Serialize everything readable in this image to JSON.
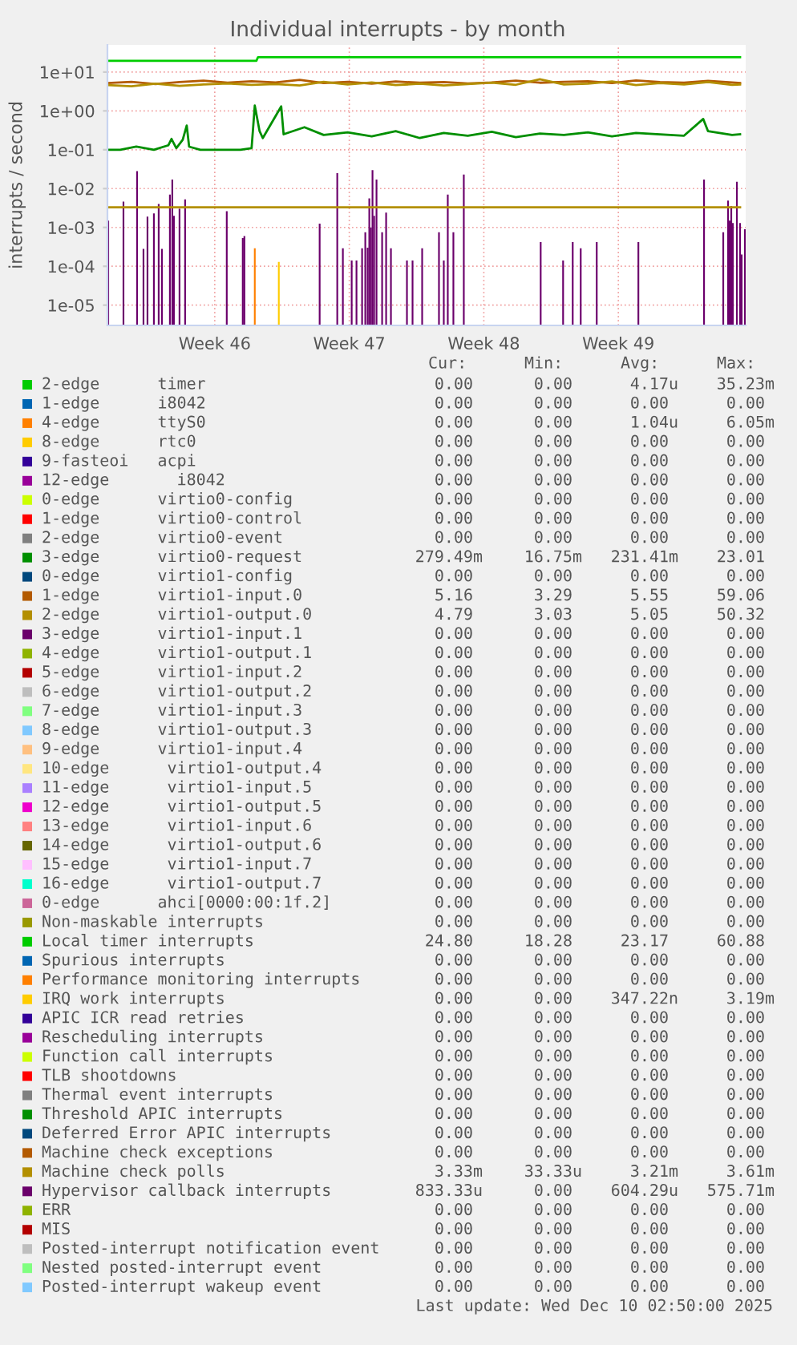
{
  "chart_data": {
    "type": "line",
    "title": "Individual interrupts - by month",
    "ylabel": "interrupts / second",
    "log": true,
    "grid": true,
    "legend": "bottom",
    "xlim": [
      "2025-11-07T22:00",
      "2025-12-11T03:00"
    ],
    "xticks": [
      {
        "value": "2025-11-13T12:00",
        "label": "Week 46"
      },
      {
        "value": "2025-11-20T12:00",
        "label": "Week 47"
      },
      {
        "value": "2025-11-27T12:00",
        "label": "Week 48"
      },
      {
        "value": "2025-12-04T12:00",
        "label": "Week 49"
      }
    ],
    "ylim": [
      3e-06,
      50
    ],
    "yticks": [
      {
        "value": 1e-05,
        "label": "1e-05"
      },
      {
        "value": 0.0001,
        "label": "1e-04"
      },
      {
        "value": 0.001,
        "label": "1e-03"
      },
      {
        "value": 0.01,
        "label": "1e-02"
      },
      {
        "value": 0.1,
        "label": "1e-01"
      },
      {
        "value": 1,
        "label": "1e+00"
      },
      {
        "value": 10,
        "label": "1e+01"
      }
    ],
    "series": [
      {
        "name": "2-edge      timer",
        "color": "#00cc00"
      },
      {
        "name": "1-edge      i8042",
        "color": "#0066b3"
      },
      {
        "name": "4-edge      ttyS0",
        "color": "#ff8000",
        "type": "bar",
        "x": [
          "2025-11-15T14:00"
        ],
        "values": [
          0.00029
        ]
      },
      {
        "name": "8-edge      rtc0",
        "color": "#ffcc00"
      },
      {
        "name": "9-fasteoi   acpi",
        "color": "#330099"
      },
      {
        "name": "12-edge       i8042",
        "color": "#990099"
      },
      {
        "name": "0-edge      virtio0-config",
        "color": "#ccff00"
      },
      {
        "name": "1-edge      virtio0-control",
        "color": "#ff0000"
      },
      {
        "name": "2-edge      virtio0-event",
        "color": "#808080"
      },
      {
        "name": "3-edge      virtio0-request",
        "color": "#008f00",
        "x": [
          "2025-11-07T22:00",
          "2025-11-08T14:00",
          "2025-11-09T10:00",
          "2025-11-10T08:00",
          "2025-11-11T02:00",
          "2025-11-11T06:00",
          "2025-11-11T12:00",
          "2025-11-11T20:00",
          "2025-11-12T01:00",
          "2025-11-12T04:00",
          "2025-11-12T18:00",
          "2025-11-14T20:00",
          "2025-11-15T10:00",
          "2025-11-15T14:00",
          "2025-11-15T20:00",
          "2025-11-16T00:00",
          "2025-11-16T23:00",
          "2025-11-17T02:00",
          "2025-11-18T04:00",
          "2025-11-19T04:00",
          "2025-11-20T10:00",
          "2025-11-21T16:00",
          "2025-11-22T22:00",
          "2025-11-24T04:00",
          "2025-11-25T10:00",
          "2025-11-26T16:00",
          "2025-11-27T22:00",
          "2025-11-29T04:00",
          "2025-11-30T10:00",
          "2025-12-01T16:00",
          "2025-12-02T22:00",
          "2025-12-04T04:00",
          "2025-12-05T10:00",
          "2025-12-06T16:00",
          "2025-12-07T22:00",
          "2025-12-08T22:00",
          "2025-12-09T04:00",
          "2025-12-10T10:00",
          "2025-12-10T20:00"
        ],
        "values": [
          0.1,
          0.1,
          0.12,
          0.1,
          0.13,
          0.19,
          0.11,
          0.18,
          0.42,
          0.12,
          0.1,
          0.1,
          0.11,
          1.37,
          0.3,
          0.2,
          1.3,
          0.25,
          0.38,
          0.24,
          0.28,
          0.22,
          0.3,
          0.2,
          0.27,
          0.23,
          0.29,
          0.21,
          0.26,
          0.24,
          0.28,
          0.22,
          0.27,
          0.25,
          0.23,
          0.62,
          0.3,
          0.24,
          0.25
        ]
      },
      {
        "name": "0-edge      virtio1-config",
        "color": "#00487d"
      },
      {
        "name": "1-edge      virtio1-input.0",
        "color": "#b35a00",
        "x": [
          "2025-11-07T22:00",
          "2025-11-09T04:00",
          "2025-11-10T10:00",
          "2025-11-11T16:00",
          "2025-11-12T22:00",
          "2025-11-14T04:00",
          "2025-11-15T10:00",
          "2025-11-16T16:00",
          "2025-11-17T22:00",
          "2025-11-19T04:00",
          "2025-11-20T10:00",
          "2025-11-21T16:00",
          "2025-11-22T22:00",
          "2025-11-24T04:00",
          "2025-11-25T10:00",
          "2025-11-26T16:00",
          "2025-11-27T22:00",
          "2025-11-29T04:00",
          "2025-11-30T10:00",
          "2025-12-01T16:00",
          "2025-12-02T22:00",
          "2025-12-04T04:00",
          "2025-12-05T10:00",
          "2025-12-06T16:00",
          "2025-12-07T22:00",
          "2025-12-09T04:00",
          "2025-12-10T10:00",
          "2025-12-10T20:00"
        ],
        "values": [
          5.2,
          5.6,
          4.9,
          5.5,
          6.0,
          5.3,
          5.8,
          5.4,
          6.3,
          5.2,
          5.6,
          5.0,
          5.7,
          5.3,
          5.5,
          5.1,
          5.4,
          6.0,
          5.3,
          5.6,
          5.8,
          5.2,
          6.1,
          5.5,
          5.3,
          5.9,
          5.4,
          5.2
        ]
      },
      {
        "name": "2-edge      virtio1-output.0",
        "color": "#b38f00",
        "x": [
          "2025-11-07T22:00",
          "2025-11-09T04:00",
          "2025-11-10T10:00",
          "2025-11-11T16:00",
          "2025-11-12T22:00",
          "2025-11-14T04:00",
          "2025-11-15T10:00",
          "2025-11-16T16:00",
          "2025-11-17T22:00",
          "2025-11-19T04:00",
          "2025-11-20T10:00",
          "2025-11-21T16:00",
          "2025-11-22T22:00",
          "2025-11-24T04:00",
          "2025-11-25T10:00",
          "2025-11-26T16:00",
          "2025-11-27T22:00",
          "2025-11-29T04:00",
          "2025-11-30T10:00",
          "2025-12-01T16:00",
          "2025-12-02T22:00",
          "2025-12-04T04:00",
          "2025-12-05T10:00",
          "2025-12-06T16:00",
          "2025-12-07T22:00",
          "2025-12-09T04:00",
          "2025-12-10T10:00",
          "2025-12-10T20:00"
        ],
        "values": [
          4.6,
          4.3,
          5.0,
          4.4,
          4.8,
          5.1,
          4.7,
          4.9,
          4.5,
          5.6,
          4.8,
          5.4,
          4.6,
          5.0,
          4.5,
          4.9,
          5.3,
          4.7,
          6.5,
          4.8,
          5.0,
          5.7,
          4.6,
          5.2,
          4.8,
          5.5,
          4.7,
          4.8
        ]
      },
      {
        "name": "3-edge      virtio1-input.1",
        "color": "#6b006b"
      },
      {
        "name": "4-edge      virtio1-output.1",
        "color": "#8fb300"
      },
      {
        "name": "5-edge      virtio1-input.2",
        "color": "#b30000"
      },
      {
        "name": "6-edge      virtio1-output.2",
        "color": "#bebebe"
      },
      {
        "name": "7-edge      virtio1-input.3",
        "color": "#80ff80"
      },
      {
        "name": "8-edge      virtio1-output.3",
        "color": "#80c9ff"
      },
      {
        "name": "9-edge      virtio1-input.4",
        "color": "#ffc080"
      },
      {
        "name": "10-edge      virtio1-output.4",
        "color": "#ffe680"
      },
      {
        "name": "11-edge      virtio1-input.5",
        "color": "#aa80ff"
      },
      {
        "name": "12-edge      virtio1-output.5",
        "color": "#ee00cc"
      },
      {
        "name": "13-edge      virtio1-input.6",
        "color": "#ff8080"
      },
      {
        "name": "14-edge      virtio1-output.6",
        "color": "#666600"
      },
      {
        "name": "15-edge      virtio1-input.7",
        "color": "#ffbfff"
      },
      {
        "name": "16-edge      virtio1-output.7",
        "color": "#00ffcc"
      },
      {
        "name": "0-edge      ahci[0000:00:1f.2]",
        "color": "#cc6699"
      },
      {
        "name": "Non-maskable interrupts",
        "color": "#999900"
      },
      {
        "name": "Local timer interrupts",
        "color": "#00cc00",
        "x": [
          "2025-11-07T22:00",
          "2025-11-15T16:00",
          "2025-11-15T18:00",
          "2025-12-10T20:00"
        ],
        "values": [
          19.5,
          19.5,
          24,
          24
        ]
      },
      {
        "name": "Spurious interrupts",
        "color": "#0066b3"
      },
      {
        "name": "Performance monitoring interrupts",
        "color": "#ff8000"
      },
      {
        "name": "IRQ work interrupts",
        "color": "#ffcc00",
        "type": "bar",
        "x": [
          "2025-11-16T20:00"
        ],
        "values": [
          0.00013
        ]
      },
      {
        "name": "APIC ICR read retries",
        "color": "#330099"
      },
      {
        "name": "Rescheduling interrupts",
        "color": "#990099"
      },
      {
        "name": "Function call interrupts",
        "color": "#ccff00"
      },
      {
        "name": "TLB shootdowns",
        "color": "#ff0000"
      },
      {
        "name": "Thermal event interrupts",
        "color": "#808080"
      },
      {
        "name": "Threshold APIC interrupts",
        "color": "#008f00"
      },
      {
        "name": "Deferred Error APIC interrupts",
        "color": "#00487d"
      },
      {
        "name": "Machine check exceptions",
        "color": "#b35a00"
      },
      {
        "name": "Machine check polls",
        "color": "#b38f00",
        "x": [
          "2025-11-07T22:00",
          "2025-12-10T20:00"
        ],
        "values": [
          0.0033,
          0.0033
        ]
      },
      {
        "name": "Hypervisor callback interrupts",
        "color": "#6b006b",
        "type": "bar",
        "x": [
          "2025-11-07T23:00",
          "2025-11-08T18:00",
          "2025-11-09T11:00",
          "2025-11-09T19:00",
          "2025-11-10T00:00",
          "2025-11-10T08:00",
          "2025-11-10T14:00",
          "2025-11-10T18:00",
          "2025-11-11T04:00",
          "2025-11-11T07:00",
          "2025-11-11T09:00",
          "2025-11-11T16:00",
          "2025-11-11T23:00",
          "2025-11-14T03:00",
          "2025-11-14T23:00",
          "2025-11-15T01:00",
          "2025-11-18T23:00",
          "2025-11-19T21:00",
          "2025-11-20T04:00",
          "2025-11-20T15:00",
          "2025-11-20T21:00",
          "2025-11-21T04:00",
          "2025-11-21T08:00",
          "2025-11-21T11:00",
          "2025-11-21T13:00",
          "2025-11-21T15:00",
          "2025-11-21T17:00",
          "2025-11-21T19:00",
          "2025-11-21T22:00",
          "2025-11-22T05:00",
          "2025-11-22T10:00",
          "2025-11-22T16:00",
          "2025-11-23T12:00",
          "2025-11-23T19:00",
          "2025-11-24T07:00",
          "2025-11-25T04:00",
          "2025-11-25T10:00",
          "2025-11-25T15:00",
          "2025-11-25T22:00",
          "2025-11-26T11:00",
          "2025-11-30T11:00",
          "2025-12-01T15:00",
          "2025-12-02T03:00",
          "2025-12-02T13:00",
          "2025-12-03T09:00",
          "2025-12-05T13:00",
          "2025-12-08T23:00",
          "2025-12-09T23:00",
          "2025-12-10T05:00",
          "2025-12-10T07:00",
          "2025-12-10T09:00",
          "2025-12-10T11:00",
          "2025-12-10T16:00",
          "2025-12-10T20:00",
          "2025-12-10T22:00",
          "2025-12-11T02:00"
        ],
        "values": [
          0.0015,
          0.0046,
          0.028,
          0.00028,
          0.0019,
          0.0023,
          0.004,
          0.00028,
          0.007,
          0.017,
          0.002,
          0.003,
          0.0053,
          0.0026,
          0.00053,
          0.0006,
          0.00125,
          0.025,
          0.00029,
          0.00014,
          0.00014,
          0.00029,
          0.00075,
          0.0003,
          0.0056,
          0.001,
          0.03,
          0.002,
          0.017,
          0.00075,
          0.0024,
          0.00029,
          0.00014,
          0.00014,
          0.00029,
          0.00075,
          0.00014,
          0.007,
          0.00075,
          0.023,
          0.00042,
          0.00014,
          0.00042,
          0.00029,
          0.00042,
          0.00042,
          0.017,
          0.00075,
          0.0049,
          0.0015,
          0.0035,
          0.0013,
          0.015,
          0.0013,
          0.0002,
          0.0009
        ]
      },
      {
        "name": "ERR",
        "color": "#8fb300"
      },
      {
        "name": "MIS",
        "color": "#b30000"
      },
      {
        "name": "Posted-interrupt notification event",
        "color": "#bebebe"
      },
      {
        "name": "Nested posted-interrupt event",
        "color": "#80ff80"
      },
      {
        "name": "Posted-interrupt wakeup event",
        "color": "#80c9ff"
      }
    ],
    "annotations": [
      "Cur:",
      "Min:",
      "Avg:",
      "Max:",
      "0.00",
      "0.00",
      "4.17u",
      "35.23m",
      "0.00",
      "0.00",
      "0.00",
      "0.00",
      "0.00",
      "0.00",
      "1.04u",
      "6.05m",
      "0.00",
      "0.00",
      "0.00",
      "0.00",
      "0.00",
      "0.00",
      "0.00",
      "0.00",
      "0.00",
      "0.00",
      "0.00",
      "0.00",
      "0.00",
      "0.00",
      "0.00",
      "0.00",
      "0.00",
      "0.00",
      "0.00",
      "0.00",
      "0.00",
      "0.00",
      "0.00",
      "0.00",
      "279.49m",
      "16.75m",
      "231.41m",
      "23.01",
      "0.00",
      "0.00",
      "0.00",
      "0.00",
      "5.16",
      "3.29",
      "5.55",
      "59.06",
      "4.79",
      "3.03",
      "5.05",
      "50.32",
      "0.00",
      "0.00",
      "0.00",
      "0.00",
      "0.00",
      "0.00",
      "0.00",
      "0.00",
      "0.00",
      "0.00",
      "0.00",
      "0.00",
      "0.00",
      "0.00",
      "0.00",
      "0.00",
      "0.00",
      "0.00",
      "0.00",
      "0.00",
      "0.00",
      "0.00",
      "0.00",
      "0.00",
      "0.00",
      "0.00",
      "0.00",
      "0.00",
      "0.00",
      "0.00",
      "0.00",
      "0.00",
      "0.00",
      "0.00",
      "0.00",
      "0.00",
      "0.00",
      "0.00",
      "0.00",
      "0.00",
      "0.00",
      "0.00",
      "0.00",
      "0.00",
      "0.00",
      "0.00",
      "0.00",
      "0.00",
      "0.00",
      "0.00",
      "0.00",
      "0.00",
      "0.00",
      "0.00",
      "0.00",
      "0.00",
      "0.00",
      "0.00",
      "0.00",
      "0.00",
      "0.00",
      "0.00",
      "0.00",
      "0.00",
      "24.80",
      "18.28",
      "23.17",
      "60.88",
      "0.00",
      "0.00",
      "0.00",
      "0.00",
      "0.00",
      "0.00",
      "0.00",
      "0.00",
      "0.00",
      "0.00",
      "347.22n",
      "3.19m",
      "0.00",
      "0.00",
      "0.00",
      "0.00",
      "0.00",
      "0.00",
      "0.00",
      "0.00",
      "0.00",
      "0.00",
      "0.00",
      "0.00",
      "0.00",
      "0.00",
      "0.00",
      "0.00",
      "0.00",
      "0.00",
      "0.00",
      "0.00",
      "0.00",
      "0.00",
      "0.00",
      "0.00",
      "0.00",
      "0.00",
      "0.00",
      "0.00",
      "0.00",
      "0.00",
      "0.00",
      "0.00",
      "3.33m",
      "33.33u",
      "3.21m",
      "3.61m",
      "833.33u",
      "0.00",
      "604.29u",
      "575.71m",
      "0.00",
      "0.00",
      "0.00",
      "0.00",
      "0.00",
      "0.00",
      "0.00",
      "0.00",
      "0.00",
      "0.00",
      "0.00",
      "0.00",
      "0.00",
      "0.00",
      "0.00",
      "0.00",
      "0.00",
      "0.00",
      "0.00",
      "0.00",
      "Last update: Wed Dec 10 02:50:00 2025"
    ]
  }
}
